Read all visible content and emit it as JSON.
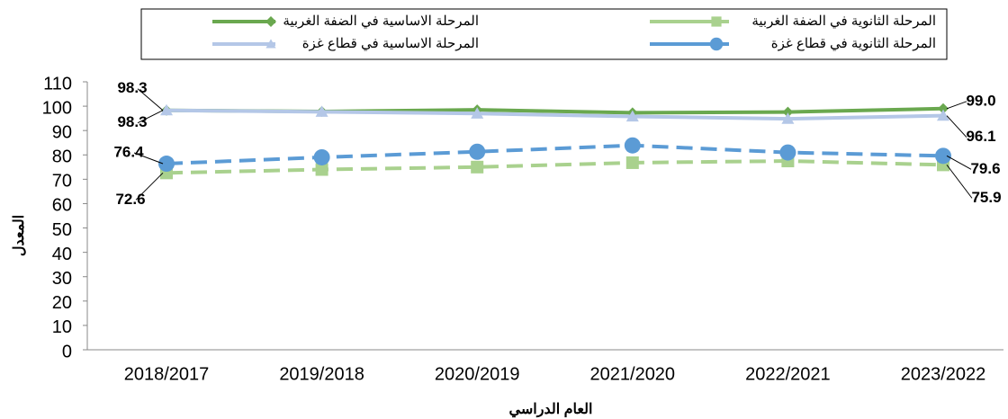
{
  "chart_data": {
    "type": "line",
    "categories": [
      "2018/2017",
      "2019/2018",
      "2020/2019",
      "2021/2020",
      "2022/2021",
      "2023/2022"
    ],
    "series": [
      {
        "name": "المرحلة الاساسية في الضفة الغربية",
        "color": "#6aa84f",
        "marker": "diamond",
        "dash": false,
        "values": [
          98.3,
          97.8,
          98.5,
          97.3,
          97.6,
          99.0
        ],
        "value_labels": [
          "98.3",
          null,
          null,
          null,
          null,
          "99.0"
        ]
      },
      {
        "name": "المرحلة الثانوية في الضفة الغربية",
        "color": "#a9d18e",
        "marker": "square",
        "dash": true,
        "values": [
          72.6,
          74.0,
          75.0,
          76.8,
          77.5,
          75.9
        ],
        "value_labels": [
          "72.6",
          null,
          null,
          null,
          null,
          "75.9"
        ]
      },
      {
        "name": "المرحلة الاساسية في قطاع غزة",
        "color": "#b4c7e7",
        "marker": "triangle",
        "dash": false,
        "values": [
          98.3,
          97.7,
          97.0,
          95.8,
          94.8,
          96.1
        ],
        "value_labels": [
          "98.3",
          null,
          null,
          null,
          null,
          "96.1"
        ]
      },
      {
        "name": "المرحلة الثانوية في قطاع غزة",
        "color": "#5b9bd5",
        "marker": "circle",
        "dash": true,
        "values": [
          76.4,
          79.0,
          81.3,
          83.9,
          81.0,
          79.6
        ],
        "value_labels": [
          "76.4",
          null,
          null,
          null,
          null,
          "79.6"
        ]
      }
    ],
    "ylim": [
      0,
      110
    ],
    "yticks": [
      0,
      10,
      20,
      30,
      40,
      50,
      60,
      70,
      80,
      90,
      100,
      110
    ],
    "y_label": "المعدل",
    "x_label": "العام الدراسي",
    "legend": "top"
  }
}
